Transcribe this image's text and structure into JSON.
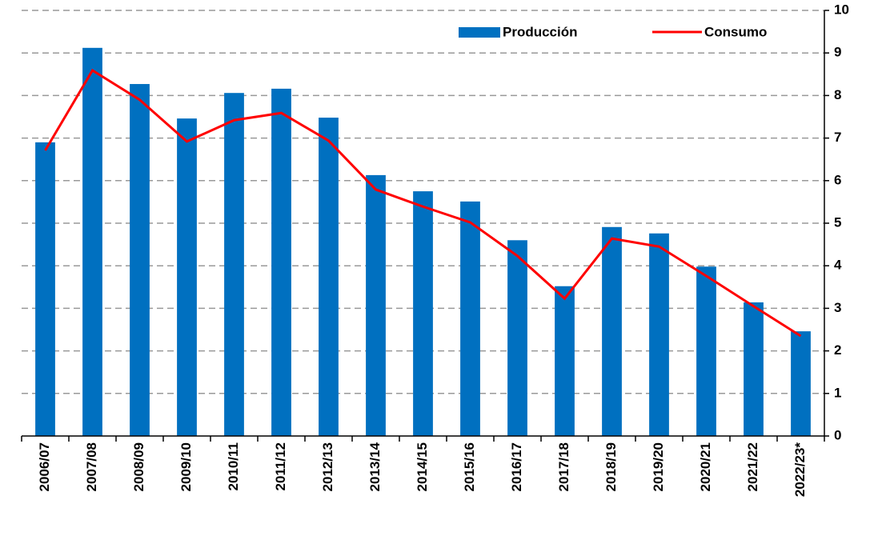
{
  "chart_data": {
    "type": "bar_line",
    "categories": [
      "2006/07",
      "2007/08",
      "2008/09",
      "2009/10",
      "2010/11",
      "2011/12",
      "2012/13",
      "2013/14",
      "2014/15",
      "2015/16",
      "2016/17",
      "2017/18",
      "2018/19",
      "2019/20",
      "2020/21",
      "2021/22",
      "2022/23*"
    ],
    "series": [
      {
        "name": "Producción",
        "type": "bar",
        "color": "#0070c0",
        "values": [
          6.9,
          9.12,
          8.27,
          7.46,
          8.06,
          8.16,
          7.48,
          6.13,
          5.75,
          5.51,
          4.6,
          3.52,
          4.91,
          4.76,
          3.98,
          3.14,
          2.46
        ]
      },
      {
        "name": "Consumo",
        "type": "line",
        "color": "#ff0000",
        "values": [
          6.71,
          8.59,
          7.9,
          6.92,
          7.42,
          7.59,
          6.94,
          5.79,
          5.39,
          5.02,
          4.23,
          3.23,
          4.64,
          4.45,
          3.76,
          3.05,
          2.35
        ]
      }
    ],
    "ylim": [
      0,
      10
    ],
    "yticks": [
      0,
      1,
      2,
      3,
      4,
      5,
      6,
      7,
      8,
      9,
      10
    ],
    "grid": true,
    "legend": "top"
  }
}
